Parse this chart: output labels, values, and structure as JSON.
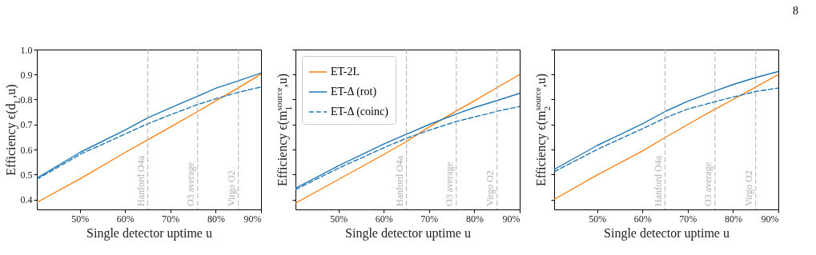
{
  "chart_data": [
    {
      "type": "line",
      "ylabel": "Efficiency ϵ(d$_{L}$,u)",
      "xlabel": "Single detector uptime u",
      "x": [
        40.5,
        50,
        60,
        65,
        70,
        76,
        80,
        85,
        90
      ],
      "xlim": [
        40.5,
        90
      ],
      "xticks": [
        {
          "value": 50,
          "label": "50%"
        },
        {
          "value": 60,
          "label": "60%"
        },
        {
          "value": 70,
          "label": "70%"
        },
        {
          "value": 80,
          "label": "80%"
        },
        {
          "value": 90,
          "label": "90%"
        }
      ],
      "ylim": [
        0.36,
        1.0
      ],
      "yticks": [
        0.4,
        0.5,
        0.6,
        0.7,
        0.8,
        0.9,
        {
          "value": 1,
          "label": "1.0"
        }
      ],
      "grid": false,
      "legend": false,
      "series": [
        {
          "color": "#ff7f0e",
          "line_style": "solid",
          "values": [
            0.388,
            0.482,
            0.588,
            0.639,
            0.69,
            0.752,
            0.795,
            0.847,
            0.902
          ]
        },
        {
          "color": "#1f77b4",
          "line_style": "solid",
          "values": [
            0.485,
            0.588,
            0.678,
            0.727,
            0.767,
            0.813,
            0.845,
            0.875,
            0.906
          ]
        },
        {
          "color": "#1f77b4",
          "line_style": "dashed",
          "values": [
            0.48,
            0.58,
            0.662,
            0.703,
            0.739,
            0.78,
            0.803,
            0.829,
            0.85
          ]
        }
      ],
      "ref_lines": [
        {
          "axis": "x",
          "value": 65,
          "label": "Hanford O4a",
          "color": "#b0b0b0",
          "line_style": "dashed"
        },
        {
          "axis": "x",
          "value": 76,
          "label": "O3 average",
          "color": "#b0b0b0",
          "line_style": "dashed"
        },
        {
          "axis": "x",
          "value": 85,
          "label": "Virgo O2",
          "color": "#b0b0b0",
          "line_style": "dashed"
        }
      ]
    },
    {
      "type": "line",
      "ylabel": "Efficiency ϵ(m$_{1}$$^{source}$,u)",
      "xlabel": "Single detector uptime u",
      "x": [
        40.5,
        50,
        60,
        65,
        70,
        76,
        80,
        85,
        90
      ],
      "xlim": [
        40.5,
        90
      ],
      "xticks": [
        {
          "value": 50,
          "label": "50%"
        },
        {
          "value": 60,
          "label": "60%"
        },
        {
          "value": 70,
          "label": "70%"
        },
        {
          "value": 80,
          "label": "80%"
        },
        {
          "value": 90,
          "label": "90%"
        }
      ],
      "ylim": [
        0.36,
        1.0
      ],
      "yticks": [
        0.4,
        0.5,
        0.6,
        0.7,
        0.8,
        0.9,
        1.0
      ],
      "grid": false,
      "legend": "top left",
      "tick_labels": "x",
      "series": [
        {
          "name": "ET-2L",
          "color": "#ff7f0e",
          "line_style": "solid",
          "values": [
            0.385,
            0.48,
            0.58,
            0.632,
            0.69,
            0.754,
            0.795,
            0.848,
            0.9
          ]
        },
        {
          "name": "ET-Δ (rot)",
          "color": "#1f77b4",
          "line_style": "solid",
          "values": [
            0.445,
            0.535,
            0.622,
            0.661,
            0.7,
            0.742,
            0.768,
            0.796,
            0.825
          ]
        },
        {
          "name": "ET-Δ (coinc)",
          "color": "#1f77b4",
          "line_style": "dashed",
          "values": [
            0.44,
            0.525,
            0.607,
            0.645,
            0.677,
            0.712,
            0.73,
            0.753,
            0.772
          ]
        }
      ],
      "ref_lines": [
        {
          "axis": "x",
          "value": 65,
          "label": "Hanford O4a",
          "color": "#b0b0b0",
          "line_style": "dashed"
        },
        {
          "axis": "x",
          "value": 76,
          "label": "O3 average",
          "color": "#b0b0b0",
          "line_style": "dashed"
        },
        {
          "axis": "x",
          "value": 85,
          "label": "Virgo O2",
          "color": "#b0b0b0",
          "line_style": "dashed"
        }
      ]
    },
    {
      "type": "line",
      "ylabel": "Efficiency ϵ(m$_{2}$$^{source}$,u)",
      "xlabel": "Single detector uptime u",
      "x": [
        40.5,
        50,
        60,
        65,
        70,
        76,
        80,
        85,
        90
      ],
      "xlim": [
        40.5,
        90
      ],
      "xticks": [
        {
          "value": 50,
          "label": "50%"
        },
        {
          "value": 60,
          "label": "60%"
        },
        {
          "value": 70,
          "label": "70%"
        },
        {
          "value": 80,
          "label": "80%"
        },
        {
          "value": 90,
          "label": "90%"
        }
      ],
      "ylim": [
        0.36,
        1.0
      ],
      "yticks": [
        0.4,
        0.5,
        0.6,
        0.7,
        0.8,
        0.9,
        1.0
      ],
      "grid": false,
      "legend": false,
      "tick_labels": "x",
      "series": [
        {
          "color": "#ff7f0e",
          "line_style": "solid",
          "values": [
            0.4,
            0.498,
            0.594,
            0.648,
            0.7,
            0.761,
            0.8,
            0.85,
            0.9
          ]
        },
        {
          "color": "#1f77b4",
          "line_style": "solid",
          "values": [
            0.52,
            0.616,
            0.703,
            0.752,
            0.793,
            0.834,
            0.86,
            0.888,
            0.912
          ]
        },
        {
          "color": "#1f77b4",
          "line_style": "dashed",
          "values": [
            0.511,
            0.6,
            0.683,
            0.726,
            0.762,
            0.791,
            0.81,
            0.832,
            0.846
          ]
        }
      ],
      "ref_lines": [
        {
          "axis": "x",
          "value": 65,
          "label": "Hanford O4a",
          "color": "#b0b0b0",
          "line_style": "dashed"
        },
        {
          "axis": "x",
          "value": 76,
          "label": "O3 average",
          "color": "#b0b0b0",
          "line_style": "dashed"
        },
        {
          "axis": "x",
          "value": 85,
          "label": "Virgo O2",
          "color": "#b0b0b0",
          "line_style": "dashed"
        }
      ],
      "annotations": [
        "8"
      ]
    }
  ]
}
